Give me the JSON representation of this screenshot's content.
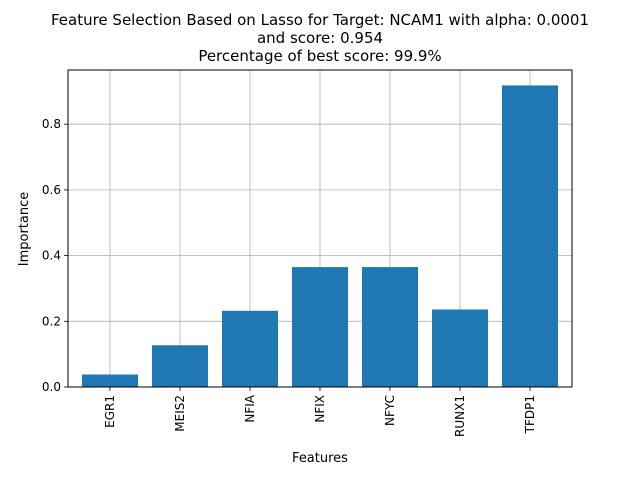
{
  "chart_data": {
    "type": "bar",
    "title_lines": [
      "Feature Selection Based on Lasso for Target: NCAM1 with alpha: 0.0001",
      "and score: 0.954",
      " Percentage of best score: 99.9%"
    ],
    "xlabel": "Features",
    "ylabel": "Importance",
    "categories": [
      "EGR1",
      "MEIS2",
      "NFIA",
      "NFIX",
      "NFYC",
      "RUNX1",
      "TFDP1"
    ],
    "values": [
      0.038,
      0.127,
      0.232,
      0.365,
      0.365,
      0.236,
      0.918
    ],
    "ylim": [
      0,
      0.965
    ],
    "yticks": [
      0.0,
      0.2,
      0.4,
      0.6,
      0.8
    ],
    "ytick_labels": [
      "0.0",
      "0.2",
      "0.4",
      "0.6",
      "0.8"
    ],
    "grid": true,
    "bar_color": "#1f77b4",
    "grid_color": "#b0b0b0"
  }
}
